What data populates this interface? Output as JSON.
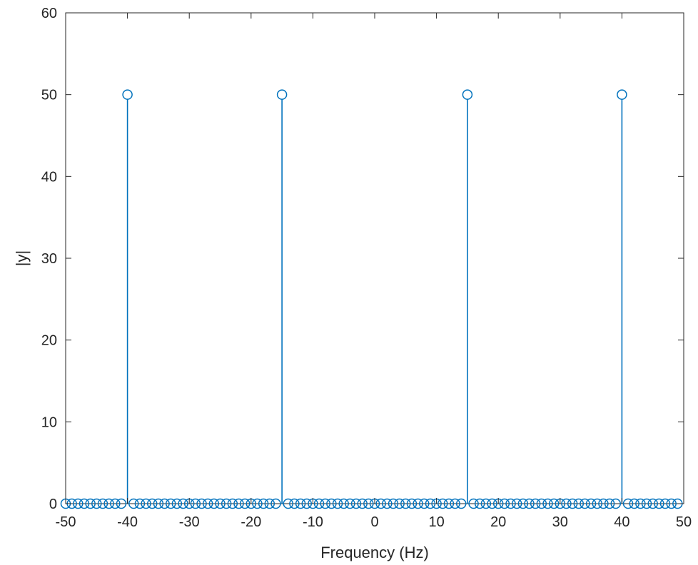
{
  "chart_data": {
    "type": "scatter",
    "style": "stem",
    "xlabel": "Frequency (Hz)",
    "ylabel": "|y|",
    "xlim": [
      -50,
      50
    ],
    "ylim": [
      0,
      60
    ],
    "grid": false,
    "series_color": "#0072BD",
    "xticks": [
      -50,
      -40,
      -30,
      -20,
      -10,
      0,
      10,
      20,
      30,
      40,
      50
    ],
    "yticks": [
      0,
      10,
      20,
      30,
      40,
      50,
      60
    ],
    "x_start": -50,
    "x_step": 1,
    "x_count": 100,
    "peaks": [
      {
        "x": -40,
        "y": 50
      },
      {
        "x": -15,
        "y": 50
      },
      {
        "x": 15,
        "y": 50
      },
      {
        "x": 40,
        "y": 50
      }
    ],
    "baseline_value": 0
  }
}
